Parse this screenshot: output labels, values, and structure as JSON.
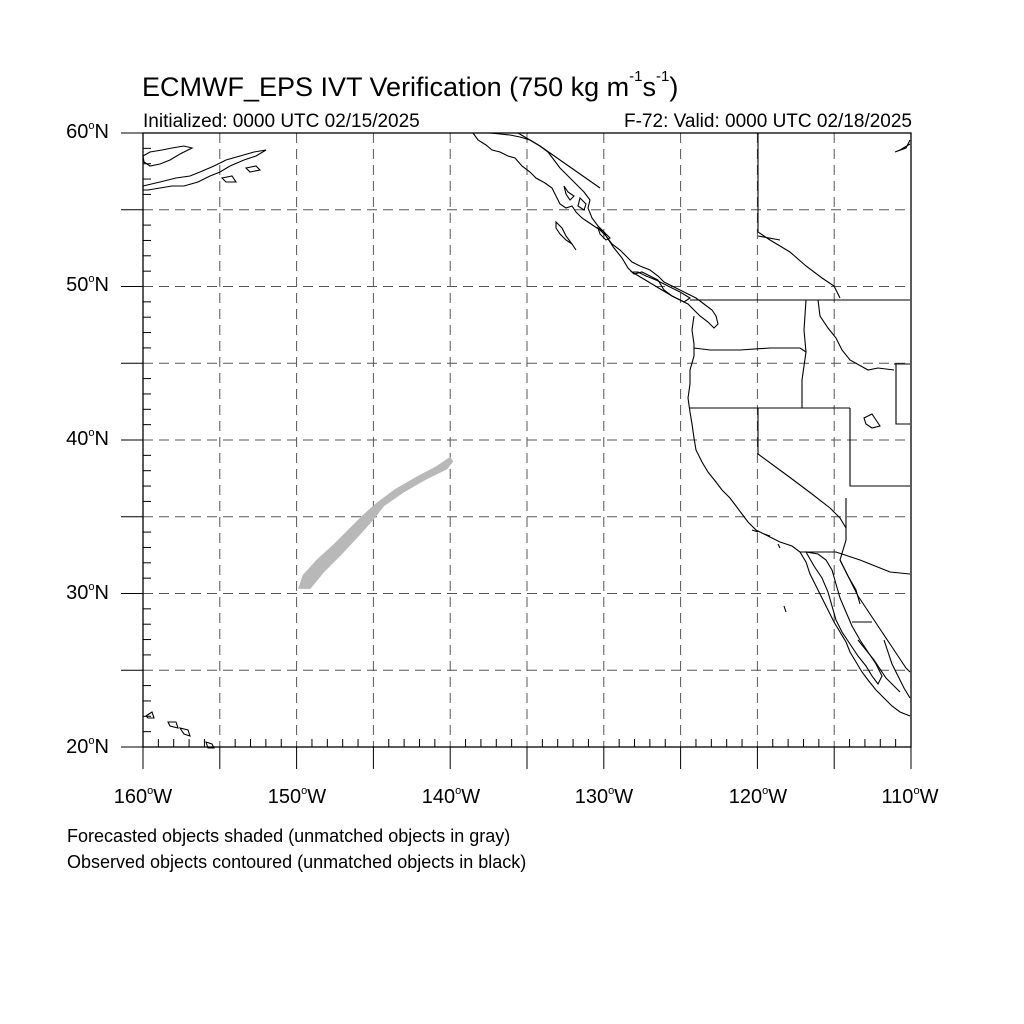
{
  "title": {
    "main": "ECMWF_EPS IVT Verification (750 kg m",
    "exp1": "-1",
    "mid": "s",
    "exp2": "-1",
    "end": ")"
  },
  "subtitle_left": "Initialized: 0000 UTC 02/15/2025",
  "subtitle_right": "F-72: Valid: 0000 UTC 02/18/2025",
  "map": {
    "projection": "cylindrical-equidistant",
    "lon_range": [
      -160,
      -110
    ],
    "lat_range": [
      20,
      60
    ],
    "grid": "dashed every 5 degrees",
    "lat_labels": [
      {
        "num": "60",
        "hem": "N"
      },
      {
        "num": "50",
        "hem": "N"
      },
      {
        "num": "40",
        "hem": "N"
      },
      {
        "num": "30",
        "hem": "N"
      },
      {
        "num": "20",
        "hem": "N"
      }
    ],
    "lon_labels": [
      {
        "num": "160",
        "hem": "W"
      },
      {
        "num": "150",
        "hem": "W"
      },
      {
        "num": "140",
        "hem": "W"
      },
      {
        "num": "130",
        "hem": "W"
      },
      {
        "num": "120",
        "hem": "W"
      },
      {
        "num": "110",
        "hem": "W"
      }
    ],
    "forecast_object": {
      "color": "#b8b8b8",
      "matched": false,
      "outline_lonlat": [
        [
          -149.9,
          30.3
        ],
        [
          -149.6,
          31.2
        ],
        [
          -148.7,
          32.2
        ],
        [
          -147.6,
          33.2
        ],
        [
          -146.5,
          34.3
        ],
        [
          -145.6,
          35.2
        ],
        [
          -144.8,
          35.9
        ],
        [
          -143.6,
          36.8
        ],
        [
          -142.2,
          37.6
        ],
        [
          -140.9,
          38.3
        ],
        [
          -140.0,
          38.9
        ],
        [
          -139.8,
          38.6
        ],
        [
          -140.2,
          38.1
        ],
        [
          -141.6,
          37.4
        ],
        [
          -143.0,
          36.6
        ],
        [
          -144.3,
          35.7
        ],
        [
          -145.0,
          34.8
        ],
        [
          -145.9,
          33.8
        ],
        [
          -147.1,
          32.5
        ],
        [
          -148.2,
          31.4
        ],
        [
          -149.1,
          30.3
        ]
      ]
    }
  },
  "footer": {
    "line1": "Forecasted objects shaded (unmatched objects in gray)",
    "line2": "Observed objects contoured (unmatched objects in black)"
  }
}
